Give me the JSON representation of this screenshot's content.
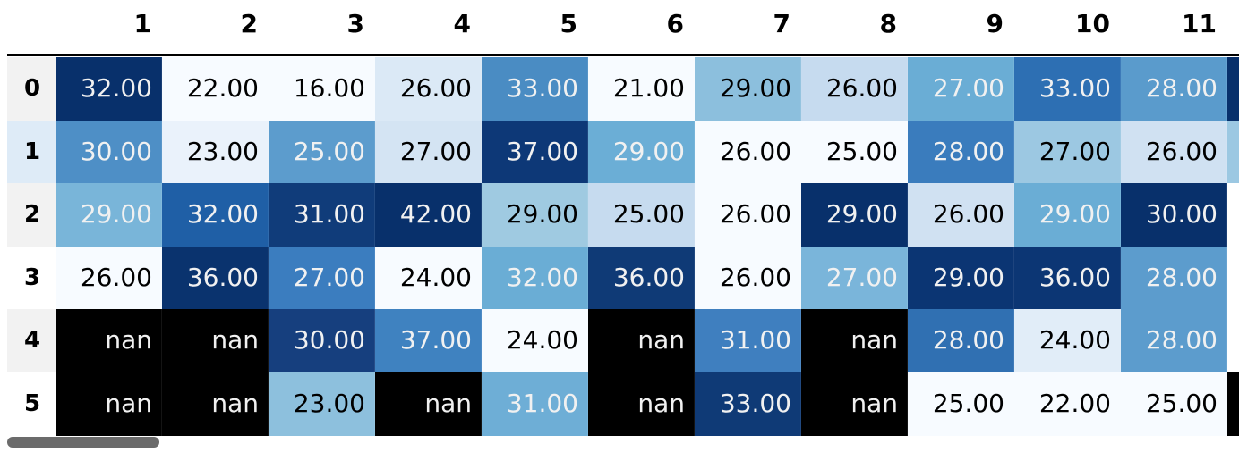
{
  "table": {
    "column_headers": [
      "1",
      "2",
      "3",
      "4",
      "5",
      "6",
      "7",
      "8",
      "9",
      "10",
      "11"
    ],
    "row_headers": [
      "0",
      "1",
      "2",
      "3",
      "4",
      "5"
    ],
    "rows": [
      [
        "32.00",
        "22.00",
        "16.00",
        "26.00",
        "33.00",
        "21.00",
        "29.00",
        "26.00",
        "27.00",
        "33.00",
        "28.00"
      ],
      [
        "30.00",
        "23.00",
        "25.00",
        "27.00",
        "37.00",
        "29.00",
        "26.00",
        "25.00",
        "28.00",
        "27.00",
        "26.00"
      ],
      [
        "29.00",
        "32.00",
        "31.00",
        "42.00",
        "29.00",
        "25.00",
        "26.00",
        "29.00",
        "26.00",
        "29.00",
        "30.00"
      ],
      [
        "26.00",
        "36.00",
        "27.00",
        "24.00",
        "32.00",
        "36.00",
        "26.00",
        "27.00",
        "29.00",
        "36.00",
        "28.00"
      ],
      [
        "nan",
        "nan",
        "30.00",
        "37.00",
        "24.00",
        "nan",
        "31.00",
        "nan",
        "28.00",
        "24.00",
        "28.00"
      ],
      [
        "nan",
        "nan",
        "23.00",
        "nan",
        "31.00",
        "nan",
        "33.00",
        "nan",
        "25.00",
        "22.00",
        "25.00"
      ]
    ],
    "cell_colors": [
      [
        "#08306b",
        "#f7fbff",
        "#f7fbff",
        "#dbe9f6",
        "#4a8cc3",
        "#f7fbff",
        "#8cbfdd",
        "#c6dbef",
        "#6aadd5",
        "#2d6fb3",
        "#5a9bcc"
      ],
      [
        "#4e8fc6",
        "#eaf2fb",
        "#5c9ccd",
        "#d4e4f3",
        "#0d3877",
        "#6baed6",
        "#f7fbff",
        "#f7fbff",
        "#3a7cbd",
        "#9cc8e2",
        "#d0e1f2"
      ],
      [
        "#79b5d9",
        "#1f5fa6",
        "#103c7a",
        "#08306b",
        "#9fcae1",
        "#c6dbef",
        "#f7fbff",
        "#08306b",
        "#d0e1f2",
        "#6aadd5",
        "#08306b"
      ],
      [
        "#f7fbff",
        "#0a336e",
        "#3b7dbf",
        "#f7fbff",
        "#6aadd5",
        "#0f3a76",
        "#f7fbff",
        "#7ab5da",
        "#0b3573",
        "#0c3674",
        "#5c9ccd"
      ],
      [
        "#000000",
        "#000000",
        "#163f7e",
        "#3f82c0",
        "#f7fbff",
        "#000000",
        "#3f7fbf",
        "#000000",
        "#3070b2",
        "#e1edf8",
        "#5c9ccd"
      ],
      [
        "#000000",
        "#000000",
        "#8dc0dd",
        "#000000",
        "#6eaed6",
        "#000000",
        "#0f3a76",
        "#000000",
        "#f7fbff",
        "#f7fbff",
        "#f7fbff"
      ]
    ],
    "text_colors": [
      [
        "#f1f1f1",
        "#000000",
        "#000000",
        "#000000",
        "#f1f1f1",
        "#000000",
        "#000000",
        "#000000",
        "#f1f1f1",
        "#f1f1f1",
        "#f1f1f1"
      ],
      [
        "#f1f1f1",
        "#000000",
        "#f1f1f1",
        "#000000",
        "#f1f1f1",
        "#f1f1f1",
        "#000000",
        "#000000",
        "#f1f1f1",
        "#000000",
        "#000000"
      ],
      [
        "#f1f1f1",
        "#f1f1f1",
        "#f1f1f1",
        "#f1f1f1",
        "#000000",
        "#000000",
        "#000000",
        "#f1f1f1",
        "#000000",
        "#f1f1f1",
        "#f1f1f1"
      ],
      [
        "#000000",
        "#f1f1f1",
        "#f1f1f1",
        "#000000",
        "#f1f1f1",
        "#f1f1f1",
        "#000000",
        "#f1f1f1",
        "#f1f1f1",
        "#f1f1f1",
        "#f1f1f1"
      ],
      [
        "#f1f1f1",
        "#f1f1f1",
        "#f1f1f1",
        "#f1f1f1",
        "#000000",
        "#f1f1f1",
        "#f1f1f1",
        "#f1f1f1",
        "#f1f1f1",
        "#000000",
        "#f1f1f1"
      ],
      [
        "#f1f1f1",
        "#f1f1f1",
        "#000000",
        "#f1f1f1",
        "#f1f1f1",
        "#f1f1f1",
        "#f1f1f1",
        "#f1f1f1",
        "#000000",
        "#000000",
        "#000000"
      ]
    ],
    "row_header_colors": [
      "#f2f2f2",
      "#deebf7",
      "#f2f2f2",
      "#ffffff",
      "#f2f2f2",
      "#ffffff"
    ],
    "partial_column_colors": [
      "#08306b",
      "#9cc8e2",
      "#ffffff",
      "#ffffff",
      "#ffffff",
      "#000000"
    ]
  },
  "scrollbar": {
    "orientation": "horizontal",
    "thumb_color": "#6b6b6b"
  }
}
